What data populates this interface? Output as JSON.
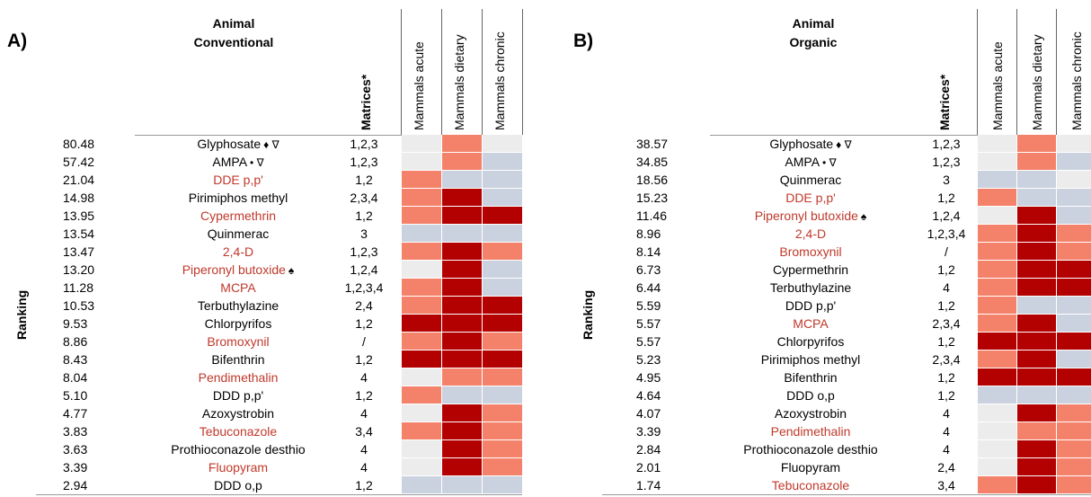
{
  "colors": {
    "high": "#b30000",
    "medium": "#f4826b",
    "low": "#cbd2df",
    "none": "#ececec",
    "red_text": "#c0392b"
  },
  "panels": [
    {
      "label": "A)",
      "title_line1": "Animal",
      "title_line2": "Conventional",
      "matrices_header": "Matrices*",
      "columns": [
        "Mammals acute",
        "Mammals dietary",
        "Mammals chronic"
      ],
      "ranking_label": "Ranking",
      "rows": [
        {
          "score": "80.48",
          "name": "Glyphosate",
          "sym": "♦ ∇",
          "red": false,
          "mat": "1,2,3",
          "cells": [
            "none",
            "medium",
            "none"
          ]
        },
        {
          "score": "57.42",
          "name": "AMPA",
          "sym": "• ∇",
          "red": false,
          "mat": "1,2,3",
          "cells": [
            "none",
            "medium",
            "low"
          ]
        },
        {
          "score": "21.04",
          "name": "DDE p,p'",
          "sym": "",
          "red": true,
          "mat": "1,2",
          "cells": [
            "medium",
            "low",
            "low"
          ]
        },
        {
          "score": "14.98",
          "name": "Pirimiphos methyl",
          "sym": "",
          "red": false,
          "mat": "2,3,4",
          "cells": [
            "medium",
            "high",
            "low"
          ]
        },
        {
          "score": "13.95",
          "name": "Cypermethrin",
          "sym": "",
          "red": true,
          "mat": "1,2",
          "cells": [
            "medium",
            "high",
            "high"
          ]
        },
        {
          "score": "13.54",
          "name": "Quinmerac",
          "sym": "",
          "red": false,
          "mat": "3",
          "cells": [
            "low",
            "low",
            "low"
          ]
        },
        {
          "score": "13.47",
          "name": "2,4-D",
          "sym": "",
          "red": true,
          "mat": "1,2,3",
          "cells": [
            "medium",
            "high",
            "medium"
          ]
        },
        {
          "score": "13.20",
          "name": "Piperonyl butoxide",
          "sym": "♠",
          "red": true,
          "mat": "1,2,4",
          "cells": [
            "none",
            "high",
            "low"
          ]
        },
        {
          "score": "11.28",
          "name": "MCPA",
          "sym": "",
          "red": true,
          "mat": "1,2,3,4",
          "cells": [
            "medium",
            "high",
            "low"
          ]
        },
        {
          "score": "10.53",
          "name": "Terbuthylazine",
          "sym": "",
          "red": false,
          "mat": "2,4",
          "cells": [
            "medium",
            "high",
            "high"
          ]
        },
        {
          "score": "9.53",
          "name": "Chlorpyrifos",
          "sym": "",
          "red": false,
          "mat": "1,2",
          "cells": [
            "high",
            "high",
            "high"
          ]
        },
        {
          "score": "8.86",
          "name": "Bromoxynil",
          "sym": "",
          "red": true,
          "mat": "/",
          "cells": [
            "medium",
            "high",
            "medium"
          ]
        },
        {
          "score": "8.43",
          "name": "Bifenthrin",
          "sym": "",
          "red": false,
          "mat": "1,2",
          "cells": [
            "high",
            "high",
            "high"
          ]
        },
        {
          "score": "8.04",
          "name": "Pendimethalin",
          "sym": "",
          "red": true,
          "mat": "4",
          "cells": [
            "none",
            "medium",
            "medium"
          ]
        },
        {
          "score": "5.10",
          "name": "DDD p,p'",
          "sym": "",
          "red": false,
          "mat": "1,2",
          "cells": [
            "medium",
            "low",
            "low"
          ]
        },
        {
          "score": "4.77",
          "name": "Azoxystrobin",
          "sym": "",
          "red": false,
          "mat": "4",
          "cells": [
            "none",
            "high",
            "medium"
          ]
        },
        {
          "score": "3.83",
          "name": "Tebuconazole",
          "sym": "",
          "red": true,
          "mat": "3,4",
          "cells": [
            "medium",
            "high",
            "medium"
          ]
        },
        {
          "score": "3.63",
          "name": "Prothioconazole desthio",
          "sym": "",
          "red": false,
          "mat": "4",
          "cells": [
            "none",
            "high",
            "medium"
          ]
        },
        {
          "score": "3.39",
          "name": "Fluopyram",
          "sym": "",
          "red": true,
          "mat": "4",
          "cells": [
            "none",
            "high",
            "medium"
          ]
        },
        {
          "score": "2.94",
          "name": "DDD o,p",
          "sym": "",
          "red": false,
          "mat": "1,2",
          "cells": [
            "low",
            "low",
            "low"
          ]
        }
      ]
    },
    {
      "label": "B)",
      "title_line1": "Animal",
      "title_line2": "Organic",
      "matrices_header": "Matrices*",
      "columns": [
        "Mammals acute",
        "Mammals dietary",
        "Mammals chronic"
      ],
      "ranking_label": "Ranking",
      "rows": [
        {
          "score": "38.57",
          "name": "Glyphosate",
          "sym": "♦ ∇",
          "red": false,
          "mat": "1,2,3",
          "cells": [
            "none",
            "medium",
            "none"
          ]
        },
        {
          "score": "34.85",
          "name": "AMPA",
          "sym": "• ∇",
          "red": false,
          "mat": "1,2,3",
          "cells": [
            "none",
            "medium",
            "low"
          ]
        },
        {
          "score": "18.56",
          "name": "Quinmerac",
          "sym": "",
          "red": false,
          "mat": "3",
          "cells": [
            "low",
            "low",
            "none"
          ]
        },
        {
          "score": "15.23",
          "name": "DDE p,p'",
          "sym": "",
          "red": true,
          "mat": "1,2",
          "cells": [
            "medium",
            "low",
            "low"
          ]
        },
        {
          "score": "11.46",
          "name": "Piperonyl butoxide",
          "sym": "♠",
          "red": true,
          "mat": "1,2,4",
          "cells": [
            "none",
            "high",
            "low"
          ]
        },
        {
          "score": "8.96",
          "name": "2,4-D",
          "sym": "",
          "red": true,
          "mat": "1,2,3,4",
          "cells": [
            "medium",
            "high",
            "medium"
          ]
        },
        {
          "score": "8.14",
          "name": "Bromoxynil",
          "sym": "",
          "red": true,
          "mat": "/",
          "cells": [
            "medium",
            "high",
            "medium"
          ]
        },
        {
          "score": "6.73",
          "name": "Cypermethrin",
          "sym": "",
          "red": false,
          "mat": "1,2",
          "cells": [
            "medium",
            "high",
            "high"
          ]
        },
        {
          "score": "6.44",
          "name": "Terbuthylazine",
          "sym": "",
          "red": false,
          "mat": "4",
          "cells": [
            "medium",
            "high",
            "high"
          ]
        },
        {
          "score": "5.59",
          "name": "DDD p,p'",
          "sym": "",
          "red": false,
          "mat": "1,2",
          "cells": [
            "medium",
            "low",
            "low"
          ]
        },
        {
          "score": "5.57",
          "name": "MCPA",
          "sym": "",
          "red": true,
          "mat": "2,3,4",
          "cells": [
            "medium",
            "high",
            "low"
          ]
        },
        {
          "score": "5.57",
          "name": "Chlorpyrifos",
          "sym": "",
          "red": false,
          "mat": "1,2",
          "cells": [
            "high",
            "high",
            "high"
          ]
        },
        {
          "score": "5.23",
          "name": "Pirimiphos methyl",
          "sym": "",
          "red": false,
          "mat": "2,3,4",
          "cells": [
            "medium",
            "high",
            "low"
          ]
        },
        {
          "score": "4.95",
          "name": "Bifenthrin",
          "sym": "",
          "red": false,
          "mat": "1,2",
          "cells": [
            "high",
            "high",
            "high"
          ]
        },
        {
          "score": "4.64",
          "name": "DDD o,p",
          "sym": "",
          "red": false,
          "mat": "1,2",
          "cells": [
            "low",
            "low",
            "low"
          ]
        },
        {
          "score": "4.07",
          "name": "Azoxystrobin",
          "sym": "",
          "red": false,
          "mat": "4",
          "cells": [
            "none",
            "high",
            "medium"
          ]
        },
        {
          "score": "3.39",
          "name": "Pendimethalin",
          "sym": "",
          "red": true,
          "mat": "4",
          "cells": [
            "none",
            "medium",
            "medium"
          ]
        },
        {
          "score": "2.84",
          "name": "Prothioconazole desthio",
          "sym": "",
          "red": false,
          "mat": "4",
          "cells": [
            "none",
            "high",
            "medium"
          ]
        },
        {
          "score": "2.01",
          "name": "Fluopyram",
          "sym": "",
          "red": false,
          "mat": "2,4",
          "cells": [
            "none",
            "high",
            "medium"
          ]
        },
        {
          "score": "1.74",
          "name": "Tebuconazole",
          "sym": "",
          "red": true,
          "mat": "3,4",
          "cells": [
            "medium",
            "high",
            "medium"
          ]
        }
      ]
    }
  ]
}
